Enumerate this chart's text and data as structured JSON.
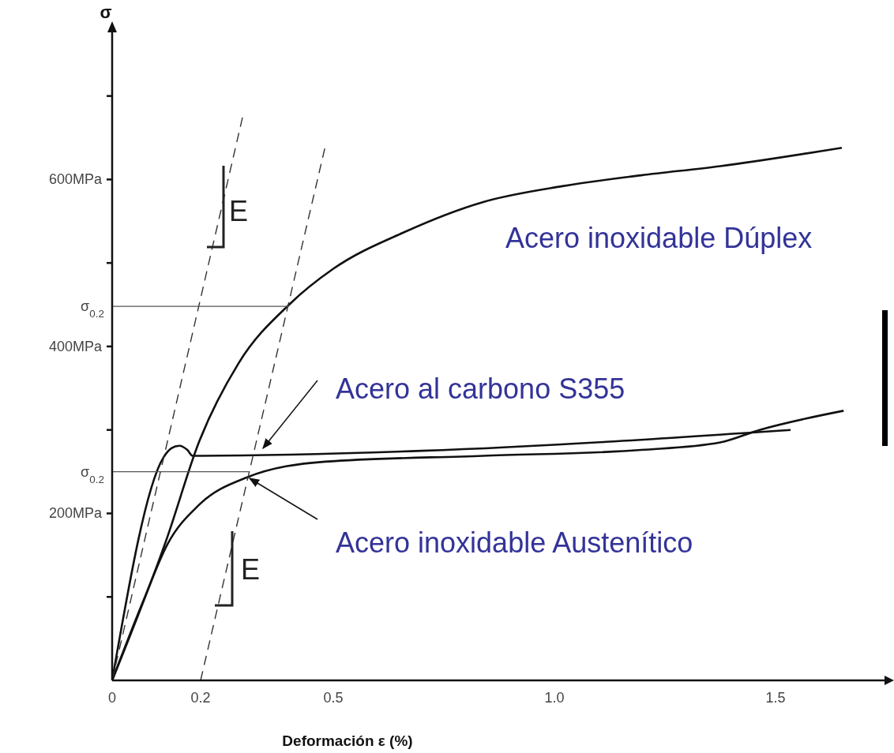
{
  "chart_data": {
    "type": "line",
    "xlabel": "Deformación  ε (%)",
    "ylabel": "σ",
    "xlim": [
      0,
      1.75
    ],
    "ylim": [
      0,
      780
    ],
    "xticks": [
      0,
      0.2,
      0.5,
      {
        "value": 1,
        "label": "1.0"
      },
      1.5
    ],
    "yticks": [
      {
        "value": 100,
        "label": null
      },
      {
        "value": 200,
        "label": "200MPa"
      },
      {
        "value": 300,
        "label": null
      },
      {
        "value": 400,
        "label": "400MPa"
      },
      {
        "value": 500,
        "label": null
      },
      {
        "value": 600,
        "label": "600MPa"
      },
      {
        "value": 700,
        "label": null
      }
    ],
    "grid": false,
    "marker": "none",
    "line_style": "solid",
    "series": [
      {
        "name": "Acero inoxidable Dúplex",
        "color": "#111111",
        "x": [
          0,
          0.125,
          0.196,
          0.286,
          0.402,
          0.5,
          0.661,
          0.839,
          1.018,
          1.196,
          1.375,
          1.65
        ],
        "values": [
          0,
          172,
          285,
          380,
          451,
          493,
          537,
          573,
          592,
          605,
          616,
          638
        ]
      },
      {
        "name": "Acero al carbono S355",
        "color": "#111111",
        "x": [
          0,
          0.116,
          0.134,
          0.152,
          0.17,
          0.182,
          0.7,
          1.534
        ],
        "values": [
          0,
          267,
          278,
          281,
          276,
          269,
          275,
          300
        ]
      },
      {
        "name": "Acero inoxidable Austenítico",
        "color": "#111111",
        "x": [
          0,
          0.071,
          0.125,
          0.196,
          0.304,
          0.482,
          0.839,
          1.196,
          1.375,
          1.464,
          1.654
        ],
        "values": [
          0,
          96,
          163,
          210,
          243,
          262,
          269,
          276,
          285,
          300,
          323
        ]
      },
      {
        "color": "#333333",
        "line_style": "dashed",
        "x": [
          0,
          0.295
        ],
        "values": [
          0,
          675
        ]
      },
      {
        "color": "#333333",
        "line_style": "dashed",
        "x": [
          0.2,
          0.482
        ],
        "values": [
          0,
          640
        ]
      },
      {
        "color": "#555555",
        "x": [
          0,
          0.4
        ],
        "values": [
          448,
          448
        ]
      },
      {
        "color": "#555555",
        "x": [
          0,
          0.31
        ],
        "values": [
          250,
          250
        ]
      }
    ],
    "annotations": [
      "E",
      "E",
      {
        "text": "σ$_{0.2}$",
        "x": 0,
        "y": 448
      },
      {
        "text": "σ$_{0.2}$",
        "x": 0,
        "y": 250
      }
    ]
  }
}
